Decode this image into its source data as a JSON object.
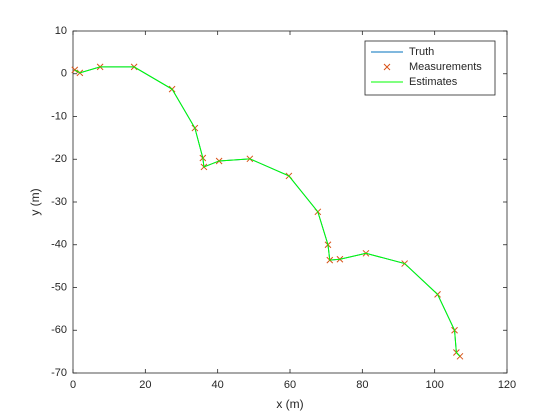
{
  "chart_data": {
    "type": "line",
    "xlabel": "x (m)",
    "ylabel": "y (m)",
    "x": [
      0.5,
      1.9,
      7.5,
      16.9,
      27.4,
      33.7,
      35.9,
      36.2,
      40.4,
      48.9,
      59.7,
      67.7,
      70.5,
      71,
      73.8,
      81,
      91.7,
      100.8,
      105.5,
      106,
      107
    ],
    "series": [
      {
        "name": "Truth",
        "color": "#0072bd",
        "style": "line",
        "values": [
          0.9,
          0.2,
          1.6,
          1.6,
          -3.6,
          -12.7,
          -19.7,
          -21.8,
          -20.4,
          -19.9,
          -23.9,
          -32.3,
          -40,
          -43.6,
          -43.4,
          -42,
          -44.4,
          -51.6,
          -60,
          -65.2,
          -66.1
        ]
      },
      {
        "name": "Measurements",
        "color": "#d95319",
        "style": "marker",
        "values": [
          0.9,
          0.2,
          1.6,
          1.6,
          -3.6,
          -12.7,
          -19.7,
          -21.8,
          -20.4,
          -19.9,
          -23.9,
          -32.3,
          -40,
          -43.6,
          -43.4,
          -42,
          -44.4,
          -51.6,
          -60,
          -65.2,
          -66.1
        ]
      },
      {
        "name": "Estimates",
        "color": "#00ff00",
        "style": "line",
        "values": [
          0.9,
          0.2,
          1.6,
          1.6,
          -3.6,
          -12.7,
          -19.7,
          -21.8,
          -20.4,
          -19.9,
          -23.9,
          -32.3,
          -40,
          -43.6,
          -43.4,
          -42,
          -44.4,
          -51.6,
          -60,
          -65.2,
          -66.1
        ]
      }
    ],
    "xlim": [
      0,
      120
    ],
    "xticks": [
      0,
      20,
      40,
      60,
      80,
      100,
      120
    ],
    "ylim": [
      -70,
      10
    ],
    "yticks": [
      -70,
      -60,
      -50,
      -40,
      -30,
      -20,
      -10,
      0,
      10
    ],
    "legend": "northeast"
  }
}
